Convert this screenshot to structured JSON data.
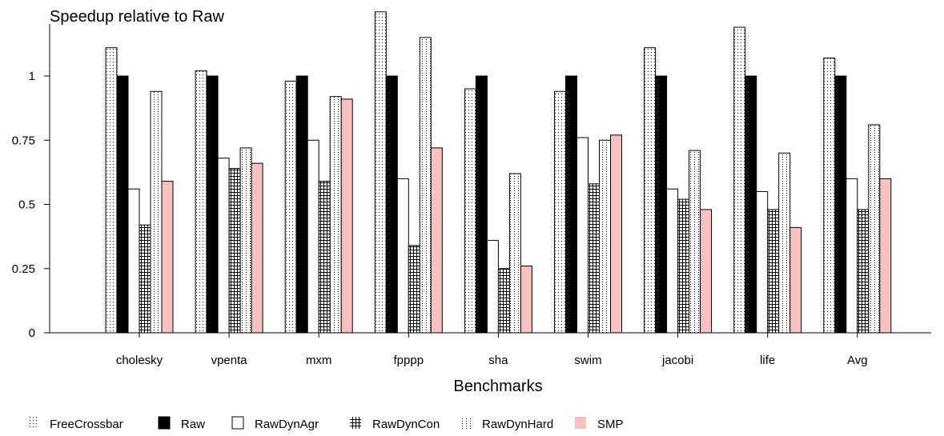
{
  "chart_data": {
    "type": "bar",
    "title": "",
    "ylabel": "Speedup relative to Raw",
    "xlabel": "Benchmarks",
    "ylim": [
      0,
      1.25
    ],
    "yticks": [
      0,
      0.25,
      0.5,
      0.75,
      1
    ],
    "ytick_labels": [
      "0",
      "0.25",
      "0.5",
      "0.75",
      "1"
    ],
    "categories": [
      "cholesky",
      "vpenta",
      "mxm",
      "fpppp",
      "sha",
      "swim",
      "jacobi",
      "life",
      "Avg"
    ],
    "legend_position": "bottom",
    "series": [
      {
        "name": "FreeCrossbar",
        "pattern": "dots-dense",
        "values": [
          1.11,
          1.02,
          0.98,
          1.25,
          0.95,
          0.94,
          1.11,
          1.19,
          1.07
        ]
      },
      {
        "name": "Raw",
        "pattern": "solid-black",
        "values": [
          1.0,
          1.0,
          1.0,
          1.0,
          1.0,
          1.0,
          1.0,
          1.0,
          1.0
        ]
      },
      {
        "name": "RawDynAgr",
        "pattern": "empty",
        "values": [
          0.56,
          0.68,
          0.75,
          0.6,
          0.36,
          0.76,
          0.56,
          0.55,
          0.6
        ]
      },
      {
        "name": "RawDynCon",
        "pattern": "grid",
        "values": [
          0.42,
          0.64,
          0.59,
          0.34,
          0.25,
          0.58,
          0.52,
          0.48,
          0.48
        ]
      },
      {
        "name": "RawDynHard",
        "pattern": "dots-columns",
        "values": [
          0.94,
          0.72,
          0.92,
          1.15,
          0.62,
          0.75,
          0.71,
          0.7,
          0.81
        ]
      },
      {
        "name": "SMP",
        "pattern": "solid-pink",
        "color": "#f9c0c0",
        "values": [
          0.59,
          0.66,
          0.91,
          0.72,
          0.26,
          0.77,
          0.48,
          0.41,
          0.6
        ]
      }
    ]
  }
}
